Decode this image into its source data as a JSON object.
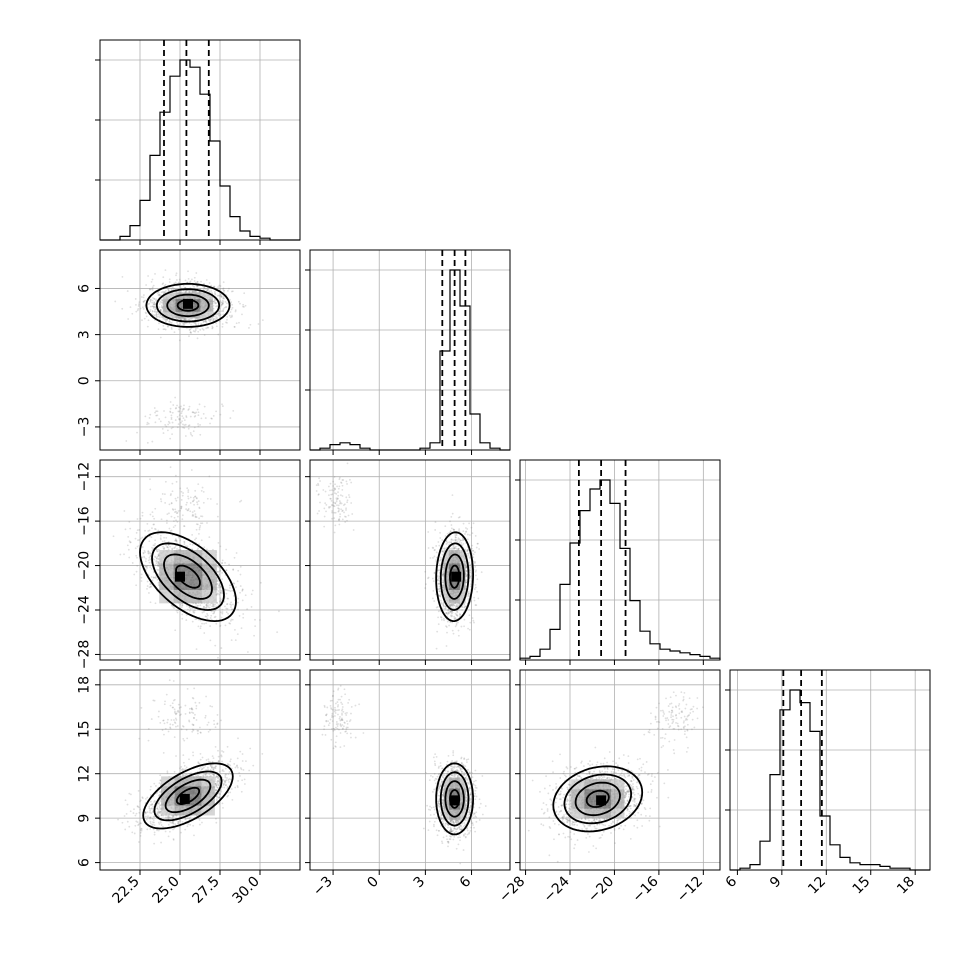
{
  "chart_data": {
    "type": "corner",
    "parameters": [
      {
        "tick_labels": [
          "22.5",
          "25.0",
          "27.5",
          "30.0"
        ],
        "ticks": [
          22.5,
          25.0,
          27.5,
          30.0
        ],
        "range": [
          20.0,
          32.5
        ],
        "median": 25.4,
        "q16": 24.0,
        "q84": 26.8,
        "histogram": {
          "edges": [
            20.0,
            20.625,
            21.25,
            21.875,
            22.5,
            23.125,
            23.75,
            24.375,
            25.0,
            25.625,
            26.25,
            26.875,
            27.5,
            28.125,
            28.75,
            29.375,
            30.0,
            30.625,
            31.25,
            31.875,
            32.5
          ],
          "counts": [
            0.0,
            0.0,
            0.02,
            0.08,
            0.22,
            0.47,
            0.71,
            0.91,
            1.0,
            0.96,
            0.81,
            0.55,
            0.3,
            0.13,
            0.05,
            0.02,
            0.01,
            0.0,
            0.0,
            0.0
          ]
        }
      },
      {
        "tick_labels": [
          "−3",
          "0",
          "3",
          "6"
        ],
        "ticks": [
          -3,
          0,
          3,
          6
        ],
        "range": [
          -4.5,
          8.5
        ],
        "median": 4.9,
        "q16": 4.1,
        "q84": 5.6,
        "histogram": {
          "edges": [
            -4.5,
            -3.85,
            -3.2,
            -2.55,
            -1.9,
            -1.25,
            -0.6,
            0.05,
            0.7,
            1.35,
            2.0,
            2.65,
            3.3,
            3.95,
            4.6,
            5.25,
            5.9,
            6.55,
            7.2,
            7.85,
            8.5
          ],
          "counts": [
            0.0,
            0.01,
            0.03,
            0.04,
            0.03,
            0.01,
            0.0,
            0.0,
            0.0,
            0.0,
            0.0,
            0.01,
            0.04,
            0.55,
            1.0,
            0.8,
            0.2,
            0.04,
            0.01,
            0.0
          ]
        }
      },
      {
        "tick_labels": [
          "−28",
          "−24",
          "−20",
          "−16",
          "−12"
        ],
        "ticks": [
          -28,
          -24,
          -20,
          -16,
          -12
        ],
        "range": [
          -28.5,
          -10.5
        ],
        "median": -21.2,
        "q16": -23.2,
        "q84": -19.0,
        "histogram": {
          "edges": [
            -28.5,
            -27.6,
            -26.7,
            -25.8,
            -24.9,
            -24.0,
            -23.1,
            -22.2,
            -21.3,
            -20.4,
            -19.5,
            -18.6,
            -17.7,
            -16.8,
            -15.9,
            -15.0,
            -14.1,
            -13.2,
            -12.3,
            -11.4,
            -10.5
          ],
          "counts": [
            0.01,
            0.02,
            0.06,
            0.17,
            0.42,
            0.65,
            0.83,
            0.95,
            1.0,
            0.87,
            0.62,
            0.33,
            0.16,
            0.09,
            0.06,
            0.05,
            0.04,
            0.03,
            0.02,
            0.01
          ]
        }
      },
      {
        "tick_labels": [
          "6",
          "9",
          "12",
          "15",
          "18"
        ],
        "ticks": [
          6,
          9,
          12,
          15,
          18
        ],
        "range": [
          5.5,
          19.0
        ],
        "median": 10.3,
        "q16": 9.1,
        "q84": 11.7,
        "histogram": {
          "edges": [
            5.5,
            6.175,
            6.85,
            7.525,
            8.2,
            8.875,
            9.55,
            10.225,
            10.9,
            11.575,
            12.25,
            12.925,
            13.6,
            14.275,
            14.95,
            15.625,
            16.3,
            16.975,
            17.65,
            18.325,
            19.0
          ],
          "counts": [
            0.0,
            0.01,
            0.03,
            0.16,
            0.53,
            0.89,
            1.0,
            0.93,
            0.77,
            0.3,
            0.14,
            0.07,
            0.04,
            0.03,
            0.03,
            0.02,
            0.01,
            0.01,
            0.0,
            0.0
          ]
        }
      }
    ],
    "pairs": [
      {
        "x": 0,
        "y": 1,
        "center": [
          25.5,
          4.9
        ],
        "sd": [
          1.3,
          0.7
        ],
        "rho": 0.0,
        "hotspot": [
          25.5,
          5.0
        ]
      },
      {
        "x": 0,
        "y": 2,
        "center": [
          25.5,
          -21.0
        ],
        "sd": [
          1.5,
          2.0
        ],
        "rho": -0.55,
        "hotspot": [
          25.0,
          -21.0
        ]
      },
      {
        "x": 0,
        "y": 3,
        "center": [
          25.5,
          10.5
        ],
        "sd": [
          1.4,
          1.1
        ],
        "rho": 0.6,
        "hotspot": [
          25.3,
          10.3
        ]
      },
      {
        "x": 1,
        "y": 2,
        "center": [
          4.9,
          -21.0
        ],
        "sd": [
          0.6,
          2.0
        ],
        "rho": 0.05,
        "hotspot": [
          5.0,
          -21.0
        ]
      },
      {
        "x": 1,
        "y": 3,
        "center": [
          4.9,
          10.3
        ],
        "sd": [
          0.6,
          1.2
        ],
        "rho": 0.0,
        "hotspot": [
          4.9,
          10.2
        ]
      },
      {
        "x": 2,
        "y": 3,
        "center": [
          -21.5,
          10.3
        ],
        "sd": [
          2.0,
          1.1
        ],
        "rho": 0.2,
        "hotspot": [
          -21.2,
          10.2
        ]
      }
    ],
    "title": "",
    "grid": true,
    "colors": {
      "contour": "#000000",
      "density": "#404040",
      "scatter": "#808080",
      "grid": "#b0b0b0"
    }
  }
}
